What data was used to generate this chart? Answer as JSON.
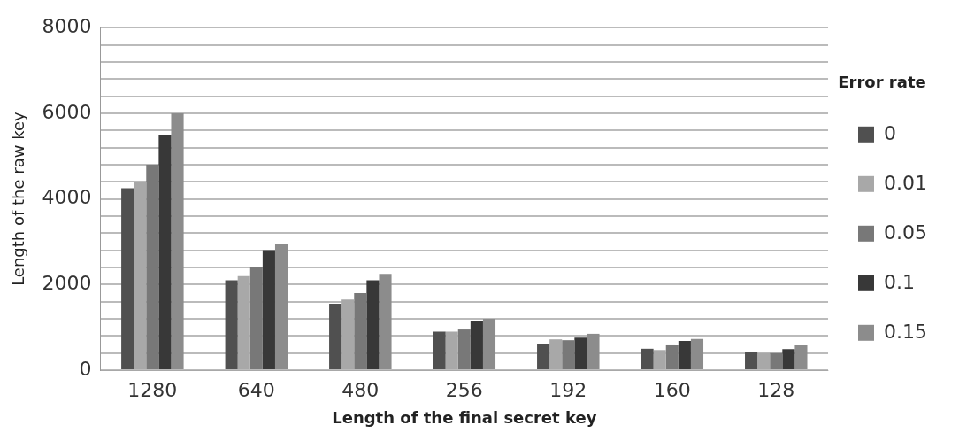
{
  "chart_data": {
    "type": "bar",
    "xlabel": "Length of the final secret key",
    "ylabel": "Length of the raw key",
    "legend_title": "Error rate",
    "categories": [
      "1280",
      "640",
      "480",
      "256",
      "192",
      "160",
      "128"
    ],
    "series": [
      {
        "name": "0",
        "color": "#505050",
        "values": [
          4250,
          2100,
          1550,
          900,
          600,
          500,
          420
        ]
      },
      {
        "name": "0.01",
        "color": "#a8a8a8",
        "values": [
          4400,
          2200,
          1650,
          900,
          720,
          470,
          400
        ]
      },
      {
        "name": "0.05",
        "color": "#787878",
        "values": [
          4800,
          2400,
          1800,
          950,
          700,
          580,
          400
        ]
      },
      {
        "name": "0.1",
        "color": "#383838",
        "values": [
          5500,
          2800,
          2100,
          1150,
          760,
          680,
          490
        ]
      },
      {
        "name": "0.15",
        "color": "#8c8c8c",
        "values": [
          6000,
          2950,
          2250,
          1200,
          850,
          730,
          580
        ]
      }
    ],
    "ylim": [
      0,
      8000
    ],
    "yticks": [
      0,
      {
        "value": 400,
        "label": null
      },
      {
        "value": 800,
        "label": null
      },
      {
        "value": 1200,
        "label": null
      },
      {
        "value": 1600,
        "label": null
      },
      2000,
      {
        "value": 2400,
        "label": null
      },
      {
        "value": 2800,
        "label": null
      },
      {
        "value": 3200,
        "label": null
      },
      {
        "value": 3600,
        "label": null
      },
      4000,
      {
        "value": 4400,
        "label": null
      },
      {
        "value": 4800,
        "label": null
      },
      {
        "value": 5200,
        "label": null
      },
      {
        "value": 5600,
        "label": null
      },
      6000,
      {
        "value": 6400,
        "label": null
      },
      {
        "value": 6800,
        "label": null
      },
      {
        "value": 7200,
        "label": null
      },
      {
        "value": 7600,
        "label": null
      },
      8000
    ],
    "grid": "y",
    "legend": "right"
  }
}
